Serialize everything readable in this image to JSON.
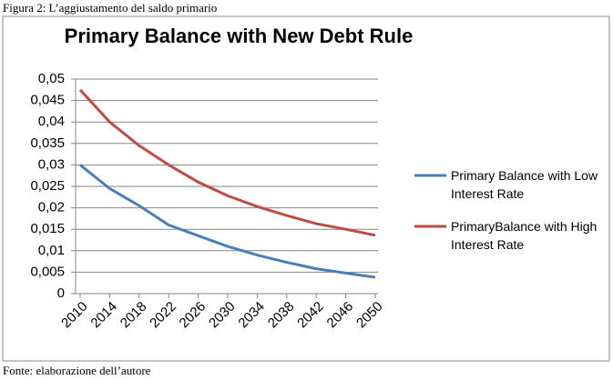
{
  "caption": "Figura 2: L’aggiustamento del saldo primario",
  "source": "Fonte: elaborazione dell’autore",
  "chart_data": {
    "type": "line",
    "title": "Primary Balance with New Debt Rule",
    "x": [
      2010,
      2014,
      2018,
      2022,
      2026,
      2030,
      2034,
      2038,
      2042,
      2046,
      2050
    ],
    "xlim": [
      2010,
      2050
    ],
    "xticks": [
      2010,
      2014,
      2018,
      2022,
      2026,
      2030,
      2034,
      2038,
      2042,
      2046,
      2050
    ],
    "ylim": [
      0,
      0.05
    ],
    "yticks": [
      0,
      {
        "value": 0.005,
        "label": "0,005"
      },
      {
        "value": 0.01,
        "label": "0,01"
      },
      {
        "value": 0.015,
        "label": "0,015"
      },
      {
        "value": 0.02,
        "label": "0,02"
      },
      {
        "value": 0.025,
        "label": "0,025"
      },
      {
        "value": 0.03,
        "label": "0,03"
      },
      {
        "value": 0.035,
        "label": "0,035"
      },
      {
        "value": 0.04,
        "label": "0,04"
      },
      {
        "value": 0.045,
        "label": "0,045"
      },
      {
        "value": 0.05,
        "label": "0,05"
      }
    ],
    "grid": true,
    "legend": "right",
    "series": [
      {
        "name": "Primary Balance with Low Interest Rate",
        "color": "#4a7ebb",
        "values": [
          0.03,
          0.0245,
          0.0205,
          0.016,
          0.0135,
          0.011,
          0.009,
          0.0073,
          0.0058,
          0.0048,
          0.0038
        ]
      },
      {
        "name": "PrimaryBalance with High Interest Rate",
        "color": "#be4b48",
        "values": [
          0.0475,
          0.04,
          0.0345,
          0.03,
          0.026,
          0.0228,
          0.0203,
          0.0182,
          0.0163,
          0.015,
          0.0136
        ]
      }
    ]
  }
}
